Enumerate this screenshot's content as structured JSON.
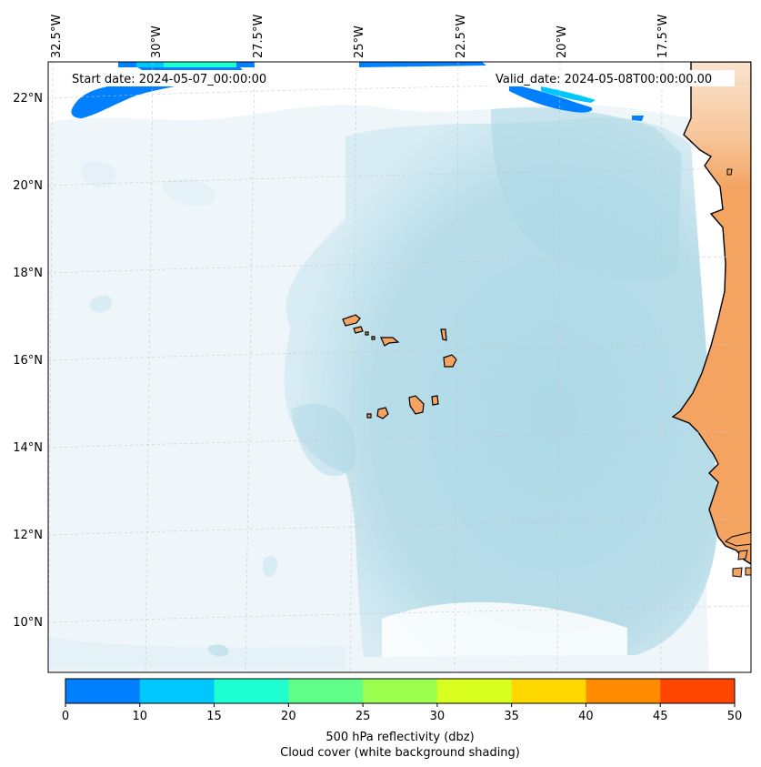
{
  "header": {
    "start_date": "Start date: 2024-05-07_00:00:00",
    "valid_date": "Valid_date: 2024-05-08T00:00:00.00"
  },
  "map": {
    "longitude_labels": [
      "32.5°W",
      "30°W",
      "27.5°W",
      "25°W",
      "22.5°W",
      "20°W",
      "17.5°W"
    ],
    "latitude_labels": [
      "22°N",
      "20°N",
      "18°N",
      "16°N",
      "14°N",
      "12°N",
      "10°N"
    ],
    "colors": {
      "ocean_cloud": "#add8e6",
      "land": "#f4a460",
      "coastline": "#000000",
      "gridline": "#c8c8c8"
    }
  },
  "colorbar": {
    "ticks": [
      "0",
      "10",
      "15",
      "20",
      "25",
      "30",
      "35",
      "40",
      "45",
      "50"
    ],
    "colors": [
      "#0080ff",
      "#00c8ff",
      "#1effd2",
      "#5fff8a",
      "#9cff50",
      "#d8ff1e",
      "#ffd800",
      "#ff8c00",
      "#ff4600"
    ],
    "label_line1": "500 hPa reflectivity (dbz)",
    "label_line2": "Cloud cover (white background shading)"
  }
}
